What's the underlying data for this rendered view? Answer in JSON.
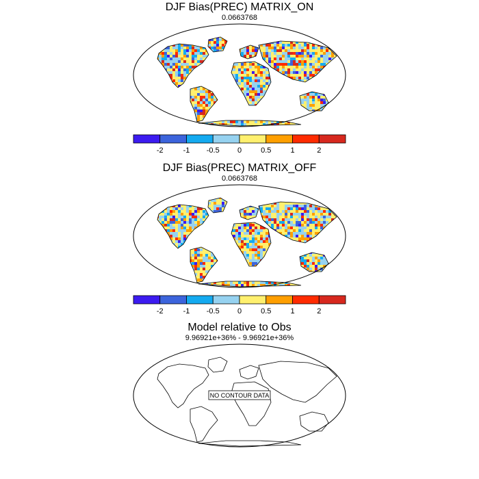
{
  "panels": [
    {
      "title": "DJF Bias(PREC) MATRIX_ON",
      "subtitle": "0.0663768",
      "has_data": true
    },
    {
      "title": "DJF Bias(PREC) MATRIX_OFF",
      "subtitle": "0.0663768",
      "has_data": true
    },
    {
      "title": "Model relative to Obs",
      "subtitle": "9.96921e+36% - 9.96921e+36%",
      "has_data": false,
      "no_data_text": "NO CONTOUR DATA"
    }
  ],
  "colorbar": {
    "tick_labels": [
      "-2",
      "-1",
      "-0.5",
      "0",
      "0.5",
      "1",
      "2"
    ],
    "colors": [
      "#3c1bf0",
      "#3c64dc",
      "#14aaf0",
      "#96d2f0",
      "#fff06e",
      "#ff9f00",
      "#ff2b00",
      "#d7281e"
    ]
  }
}
